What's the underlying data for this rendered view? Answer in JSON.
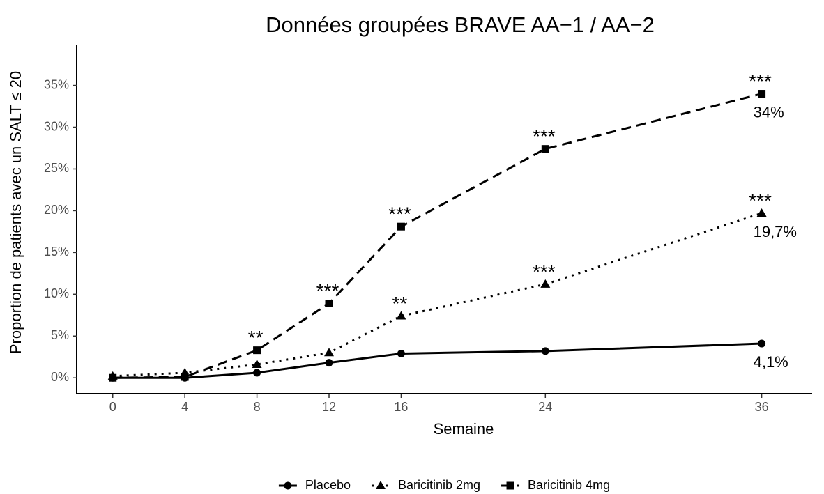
{
  "chart_data": {
    "type": "line",
    "title": "Données groupées BRAVE AA−1 / AA−2",
    "x_label": "Semaine",
    "y_label": "Proportion de patients avec un SALT ≤ 20",
    "x": [
      0,
      4,
      8,
      12,
      16,
      24,
      36
    ],
    "xlim": [
      -2,
      38.8
    ],
    "xticks": [
      0,
      4,
      8,
      12,
      16,
      24,
      36
    ],
    "ylim": [
      -1.9,
      39.8
    ],
    "yticks": [
      {
        "value": 0,
        "label": "0%"
      },
      {
        "value": 5,
        "label": "5%"
      },
      {
        "value": 10,
        "label": "10%"
      },
      {
        "value": 15,
        "label": "15%"
      },
      {
        "value": 20,
        "label": "20%"
      },
      {
        "value": 25,
        "label": "25%"
      },
      {
        "value": 30,
        "label": "30%"
      },
      {
        "value": 35,
        "label": "35%"
      }
    ],
    "legend": "bottom",
    "series": [
      {
        "name": "Placebo",
        "color": "#000000",
        "dash": "solid",
        "marker": "circle",
        "values": [
          0,
          0,
          0.6,
          1.8,
          2.9,
          3.2,
          4.1
        ],
        "value_labels": [
          null,
          null,
          null,
          null,
          null,
          null,
          "4,1%"
        ],
        "significance": [
          null,
          null,
          null,
          null,
          null,
          null,
          null
        ]
      },
      {
        "name": "Baricitinib 2mg",
        "color": "#000000",
        "dash": "dotted",
        "marker": "triangle",
        "values": [
          0.2,
          0.6,
          1.6,
          3.0,
          7.4,
          11.2,
          19.7
        ],
        "value_labels": [
          null,
          null,
          null,
          null,
          null,
          null,
          "19,7%"
        ],
        "significance": [
          null,
          null,
          null,
          null,
          "**",
          "***",
          "***"
        ]
      },
      {
        "name": "Baricitinib 4mg",
        "color": "#000000",
        "dash": "dashed",
        "marker": "square",
        "values": [
          0,
          0.1,
          3.3,
          8.9,
          18.1,
          27.4,
          34
        ],
        "value_labels": [
          null,
          null,
          null,
          null,
          null,
          null,
          "34%"
        ],
        "significance": [
          null,
          null,
          "**",
          "***",
          "***",
          "***",
          "***"
        ]
      }
    ]
  }
}
